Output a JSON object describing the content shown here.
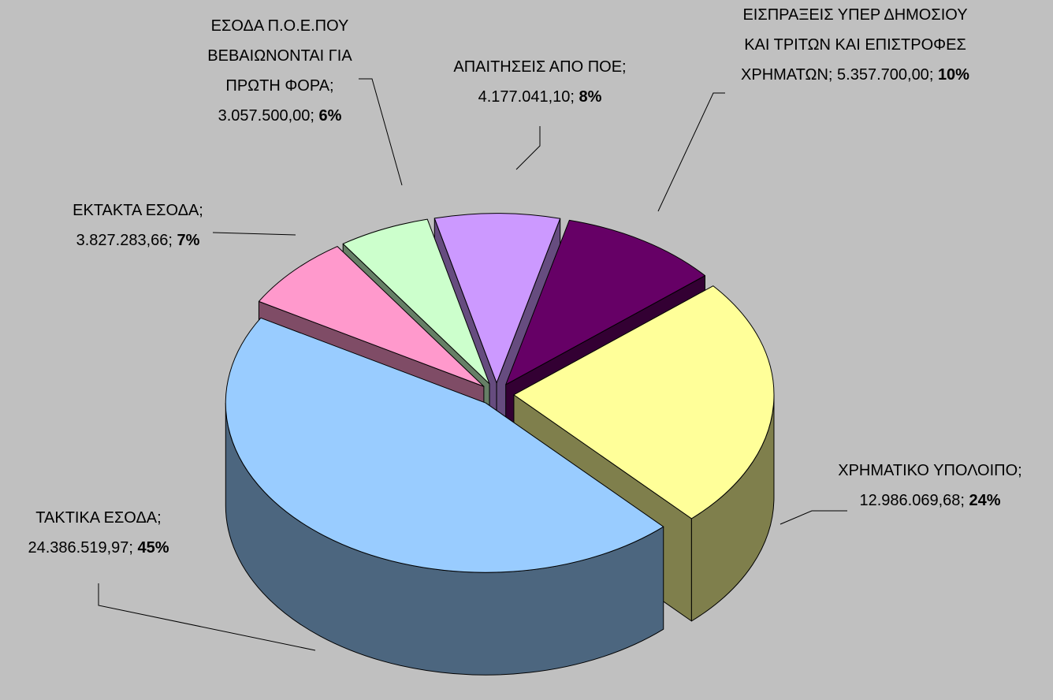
{
  "chart_data": {
    "type": "pie",
    "categories": [
      "ΧΡΗΜΑΤΙΚΟ ΥΠΟΛΟΙΠΟ",
      "ΤΑΚΤΙΚΑ ΕΣΟΔΑ",
      "ΕΚΤΑΚΤΑ ΕΣΟΔΑ",
      "ΕΣΟΔΑ Π.Ο.Ε.ΠΟΥ ΒΕΒΑΙΩΝΟΝΤΑΙ ΓΙΑ ΠΡΩΤΗ ΦΟΡΑ",
      "ΑΠΑΙΤΗΣΕΙΣ ΑΠΟ ΠΟΕ",
      "ΕΙΣΠΡΑΞΕΙΣ ΥΠΕΡ ΔΗΜΟΣΙΟΥ ΚΑΙ ΤΡΙΤΩΝ ΚΑΙ ΕΠΙΣΤΡΟΦΕΣ ΧΡΗΜΑΤΩΝ"
    ],
    "values": [
      12986069.68,
      24386519.97,
      3827283.66,
      3057500.0,
      4177041.1,
      5357700.0
    ],
    "value_labels": [
      "12.986.069,68",
      "24.386.519,97",
      "3.827.283,66",
      "3.057.500,00",
      "4.177.041,10",
      "5.357.700,00"
    ],
    "percent_labels": [
      "24%",
      "45%",
      "7%",
      "6%",
      "8%",
      "10%"
    ],
    "label_separator": "; ",
    "colors": [
      "#ffff99",
      "#99ccff",
      "#ff99cc",
      "#ccffcc",
      "#cc99ff",
      "#660066"
    ]
  }
}
